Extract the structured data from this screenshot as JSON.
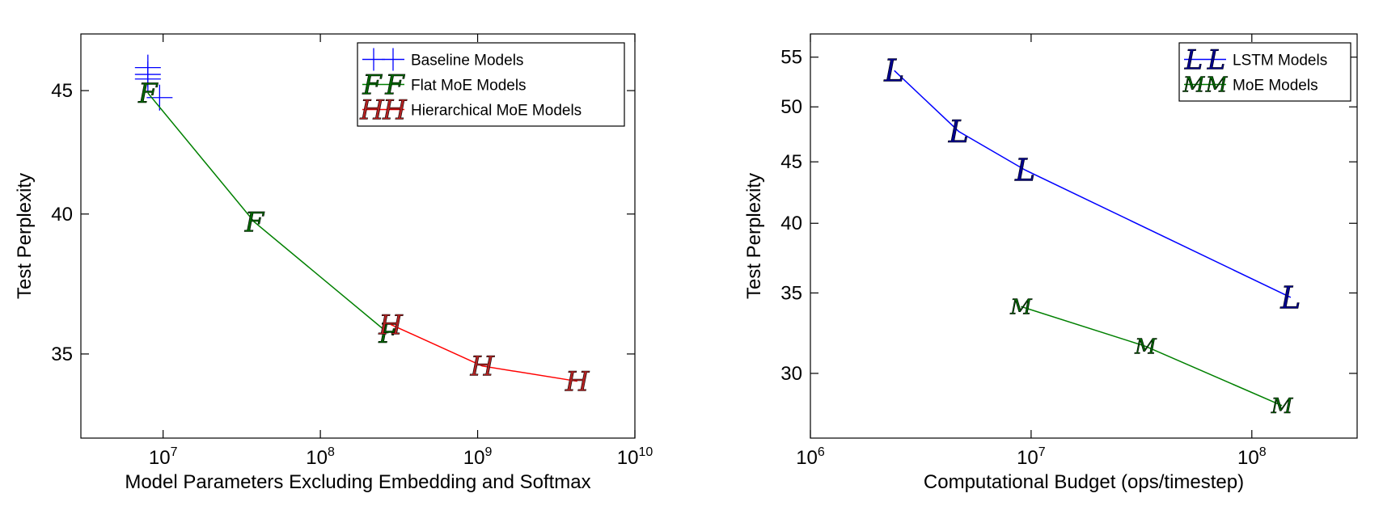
{
  "chart_data": [
    {
      "type": "line",
      "xlabel": "Model Parameters Excluding Embedding and Softmax",
      "ylabel": "Test Perplexity",
      "xscale": "log",
      "yscale": "log",
      "xlim": [
        3000000,
        10000000000
      ],
      "ylim": [
        32.3,
        47.5
      ],
      "x_ticks": [
        {
          "value": 10000000,
          "base": "10",
          "exp": "7"
        },
        {
          "value": 100000000,
          "base": "10",
          "exp": "8"
        },
        {
          "value": 1000000000,
          "base": "10",
          "exp": "9"
        },
        {
          "value": 10000000000,
          "base": "10",
          "exp": "10"
        }
      ],
      "y_ticks": [
        {
          "value": 35,
          "label": "35"
        },
        {
          "value": 40,
          "label": "40"
        },
        {
          "value": 45,
          "label": "45"
        }
      ],
      "legend_position": "top-right",
      "grid": false,
      "series": [
        {
          "name": "Baseline Models",
          "marker": "+",
          "color": "#0000ff",
          "line": false,
          "x": [
            8000000,
            8000000,
            8000000,
            9500000
          ],
          "y": [
            46.0,
            45.7,
            45.5,
            44.7
          ]
        },
        {
          "name": "Flat MoE Models",
          "marker": "F",
          "color": "#006400",
          "line_color": "#008000",
          "line": true,
          "x": [
            8000000,
            38000000,
            270000000
          ],
          "y": [
            44.9,
            39.7,
            35.7
          ]
        },
        {
          "name": "Hierarchical MoE Models",
          "marker": "H",
          "color": "#b22222",
          "line_color": "#ff0000",
          "line": true,
          "x": [
            280000000,
            1070000000,
            4300000000
          ],
          "y": [
            36.0,
            34.6,
            34.1
          ]
        }
      ]
    },
    {
      "type": "line",
      "xlabel": "Computational Budget (ops/timestep)",
      "ylabel": "Test Perplexity",
      "xscale": "log",
      "yscale": "log",
      "xlim": [
        1000000,
        300000000
      ],
      "ylim": [
        26.5,
        57.5
      ],
      "x_ticks": [
        {
          "value": 1000000,
          "base": "10",
          "exp": "6"
        },
        {
          "value": 10000000,
          "base": "10",
          "exp": "7"
        },
        {
          "value": 100000000,
          "base": "10",
          "exp": "8"
        }
      ],
      "y_ticks": [
        {
          "value": 30,
          "label": "30"
        },
        {
          "value": 35,
          "label": "35"
        },
        {
          "value": 40,
          "label": "40"
        },
        {
          "value": 45,
          "label": "45"
        },
        {
          "value": 50,
          "label": "50"
        },
        {
          "value": 55,
          "label": "55"
        }
      ],
      "legend_position": "top-right",
      "grid": false,
      "series": [
        {
          "name": "LSTM Models",
          "marker": "L",
          "color": "#00008b",
          "line_color": "#0000ff",
          "line": true,
          "x": [
            2400000,
            4700000,
            9400000,
            150000000
          ],
          "y": [
            53.6,
            47.7,
            44.3,
            34.7
          ]
        },
        {
          "name": "MoE Models",
          "marker": "M",
          "color": "#006400",
          "line_color": "#008000",
          "line": true,
          "x": [
            9000000,
            33000000,
            137000000
          ],
          "y": [
            34.1,
            31.6,
            28.2
          ]
        }
      ]
    }
  ]
}
